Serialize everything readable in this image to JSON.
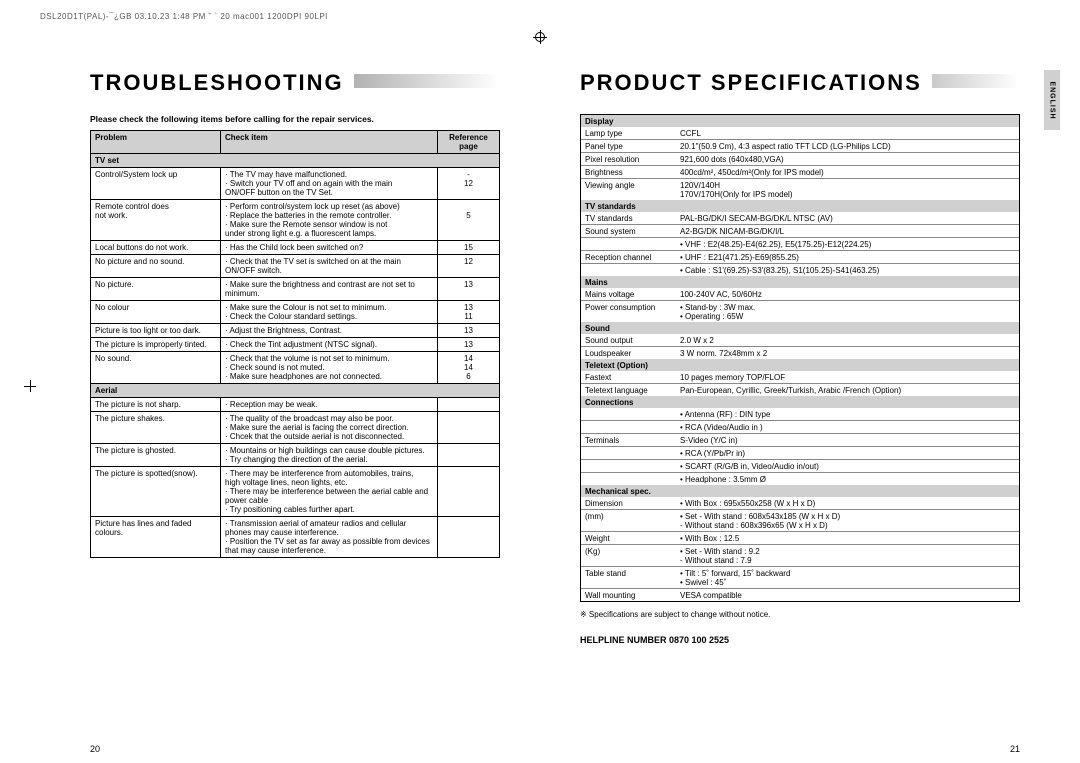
{
  "header_stripe": "DSL20D1T(PAL)-¯¿GB  03.10.23 1:48 PM  ˘ ` 20   mac001  1200DPI 90LPI",
  "left": {
    "title": "TROUBLESHOOTING",
    "intro": "Please check the following items before calling for the repair services.",
    "headers": {
      "problem": "Problem",
      "check": "Check item",
      "ref": "Reference page"
    },
    "sections": {
      "tvset": "TV set",
      "aerial": "Aerial"
    },
    "rows": [
      {
        "p": "Control/System lock up",
        "c": "· The TV may have malfunctioned.\n· Switch your TV off and on again with the main\n  ON/OFF button on the TV Set.",
        "r": "-\n12\n "
      },
      {
        "p": "Remote control does\nnot work.",
        "c": "· Perform control/system lock up reset (as above)\n· Replace the batteries in the remote controller.\n· Make sure the Remote sensor window is not\n  under strong light e.g. a fluorescent lamps.",
        "r": " \n5\n \n "
      },
      {
        "p": "Local buttons do not work.",
        "c": "· Has the Child lock been switched on?",
        "r": "15"
      },
      {
        "p": "No picture and no sound.",
        "c": "· Check that the TV set is switched on at the main ON/OFF switch.",
        "r": "12"
      },
      {
        "p": "No picture.",
        "c": "· Make sure the brightness and contrast are not set to minimum.",
        "r": "13"
      },
      {
        "p": "No colour",
        "c": "· Make sure the Colour is not set to minimum.\n· Check the Colour standard settings.",
        "r": "13\n11"
      },
      {
        "p": "Picture is too light or too dark.",
        "c": "· Adjust the Brightness, Contrast.",
        "r": "13"
      },
      {
        "p": "The picture is improperly tinted.",
        "c": "· Check the Tint adjustment (NTSC signal).",
        "r": "13"
      },
      {
        "p": "No sound.",
        "c": "· Check that the volume is not set to minimum.\n· Check sound is not muted.\n· Make sure headphones are not connected.",
        "r": "14\n14\n6"
      }
    ],
    "aerial_rows": [
      {
        "p": "The picture is not sharp.",
        "c": "· Reception may be weak.",
        "r": ""
      },
      {
        "p": "The picture shakes.",
        "c": "· The quality of the broadcast may also be poor.\n· Make sure the aerial is facing the correct direction.\n· Chcek that the outside aerial is not disconnected.",
        "r": ""
      },
      {
        "p": "The picture is ghosted.",
        "c": "· Mountains or high buildings can cause double pictures.\n· Try changing the direction of the aerial.",
        "r": ""
      },
      {
        "p": "The picture is spotted(snow).",
        "c": "· There may be interference from automobiles, trains,\n  high voltage  lines, neon lights, etc.\n· There may be interference between the aerial cable and\n  power cable\n· Try positioning cables further apart.",
        "r": ""
      },
      {
        "p": "Picture has lines and faded colours.",
        "c": "· Transmission aerial of amateur radios and cellular\n  phones may cause interference.\n· Position the TV set as far away as possible from devices\n  that may cause interference.",
        "r": ""
      }
    ],
    "page_num": "20"
  },
  "right": {
    "title": "PRODUCT SPECIFICATIONS",
    "cats": {
      "display": "Display",
      "tvstd": "TV standards",
      "mains": "Mains",
      "sound": "Sound",
      "teletext": "Teletext (Option)",
      "connections": "Connections",
      "mech": "Mechanical spec."
    },
    "display_rows": [
      [
        "Lamp type",
        "CCFL"
      ],
      [
        "Panel type",
        "20.1\"(50.9 Cm), 4:3 aspect ratio TFT LCD (LG-Philips LCD)"
      ],
      [
        "Pixel resolution",
        "921,600 dots (640x480,VGA)"
      ],
      [
        "Brightness",
        "400cd/m², 450cd/m²(Only for IPS model)"
      ],
      [
        "Viewing angle",
        "120V/140H\n170V/170H(Only for IPS model)"
      ]
    ],
    "tvstd_rows": [
      [
        "TV standards",
        "PAL-BG/DK/I  SECAM-BG/DK/L  NTSC (AV)"
      ],
      [
        "Sound system",
        "A2-BG/DK  NICAM-BG/DK/I/L"
      ],
      [
        "",
        "•  VHF : E2(48.25)-E4(62.25), E5(175.25)-E12(224.25)"
      ],
      [
        "Reception channel",
        "•  UHF : E21(471.25)-E69(855.25)"
      ],
      [
        "",
        "•  Cable : S1'(69.25)-S3'(83.25), S1(105.25)-S41(463.25)"
      ]
    ],
    "mains_rows": [
      [
        "Mains voltage",
        "100-240V AC, 50/60Hz"
      ],
      [
        "Power consumption",
        "•  Stand-by : 3W max.\n•  Operating : 65W"
      ]
    ],
    "sound_rows": [
      [
        "Sound output",
        "2.0 W x 2"
      ],
      [
        "Loudspeaker",
        "3 W norm.  72x48mm x 2"
      ]
    ],
    "teletext_rows": [
      [
        "Fastext",
        "10 pages memory TOP/FLOF"
      ],
      [
        "Teletext language",
        "Pan-European, Cyrillic, Greek/Turkish, Arabic /French (Option)"
      ]
    ],
    "connections_rows": [
      [
        "",
        "•  Antenna (RF) : DIN type"
      ],
      [
        "",
        "•  RCA (Video/Audio in )"
      ],
      [
        "Terminals",
        "   S-Video (Y/C in)"
      ],
      [
        "",
        "•  RCA (Y/Pb/Pr in)"
      ],
      [
        "",
        "•  SCART (R/G/B in, Video/Audio in/out)"
      ],
      [
        "",
        "•  Headphone : 3.5mm Ø"
      ]
    ],
    "mech_rows": [
      [
        "Dimension",
        "•  With Box : 695x550x258 (W x H x D)"
      ],
      [
        "(mm)",
        "•  Set  - With stand : 608x543x185 (W x H x D)\n           - Without stand : 608x396x65 (W x H x D)"
      ],
      [
        "Weight",
        "•  With Box : 12.5"
      ],
      [
        "(Kg)",
        "•  Set  - With stand : 9.2\n           - Without stand : 7.9"
      ],
      [
        "Table stand",
        "•  Tilt : 5˚ forward, 15˚ backward\n•  Swivel : 45˚"
      ],
      [
        "Wall mounting",
        "VESA compatible"
      ]
    ],
    "footnote": "※  Specifications are subject to change without notice.",
    "helpline": "HELPLINE NUMBER  0870 100 2525",
    "side_tab": "ENGLISH",
    "page_num": "21"
  }
}
